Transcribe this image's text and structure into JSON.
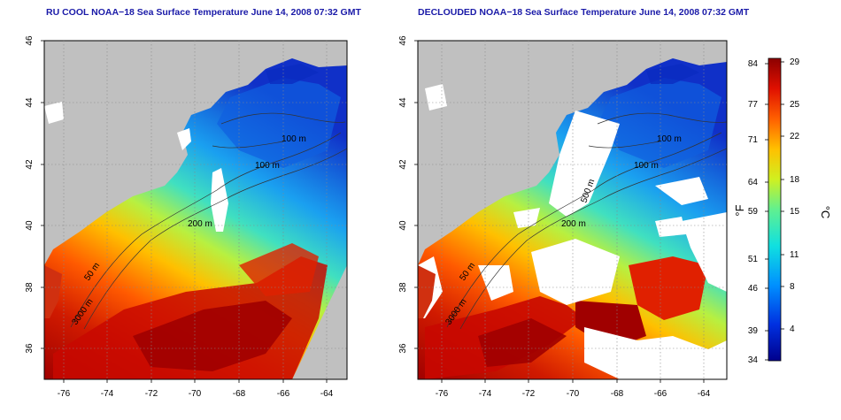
{
  "panels": [
    {
      "title": "RU COOL NOAA−18 Sea Surface Temperature June 14, 2008 07:32 GMT",
      "contour_labels": [
        "100 m",
        "100 m",
        "200 m",
        "50 m",
        "3000 m"
      ]
    },
    {
      "title": "DECLOUDED NOAA−18 Sea Surface Temperature June 14, 2008 07:32 GMT",
      "contour_labels": [
        "100 m",
        "100 m",
        "200 m",
        "50 m",
        "3000 m",
        "500 m"
      ]
    }
  ],
  "axes": {
    "lon_ticks": [
      "-76",
      "-74",
      "-72",
      "-70",
      "-68",
      "-66",
      "-64"
    ],
    "lat_ticks": [
      "46",
      "44",
      "42",
      "40",
      "38",
      "36"
    ]
  },
  "colorbar": {
    "fahrenheit_ticks": [
      "84",
      "77",
      "71",
      "64",
      "59",
      "51",
      "46",
      "39",
      "34"
    ],
    "celsius_ticks": [
      "29",
      "25",
      "22",
      "18",
      "15",
      "11",
      "8",
      "4"
    ],
    "fahrenheit_unit": "°F",
    "celsius_unit": "°C"
  },
  "colors": {
    "land": "#c0c0c0",
    "cloud": "#ffffff",
    "title": "#1a1aa8",
    "warm": "#b00000",
    "cold": "#1030c0"
  }
}
